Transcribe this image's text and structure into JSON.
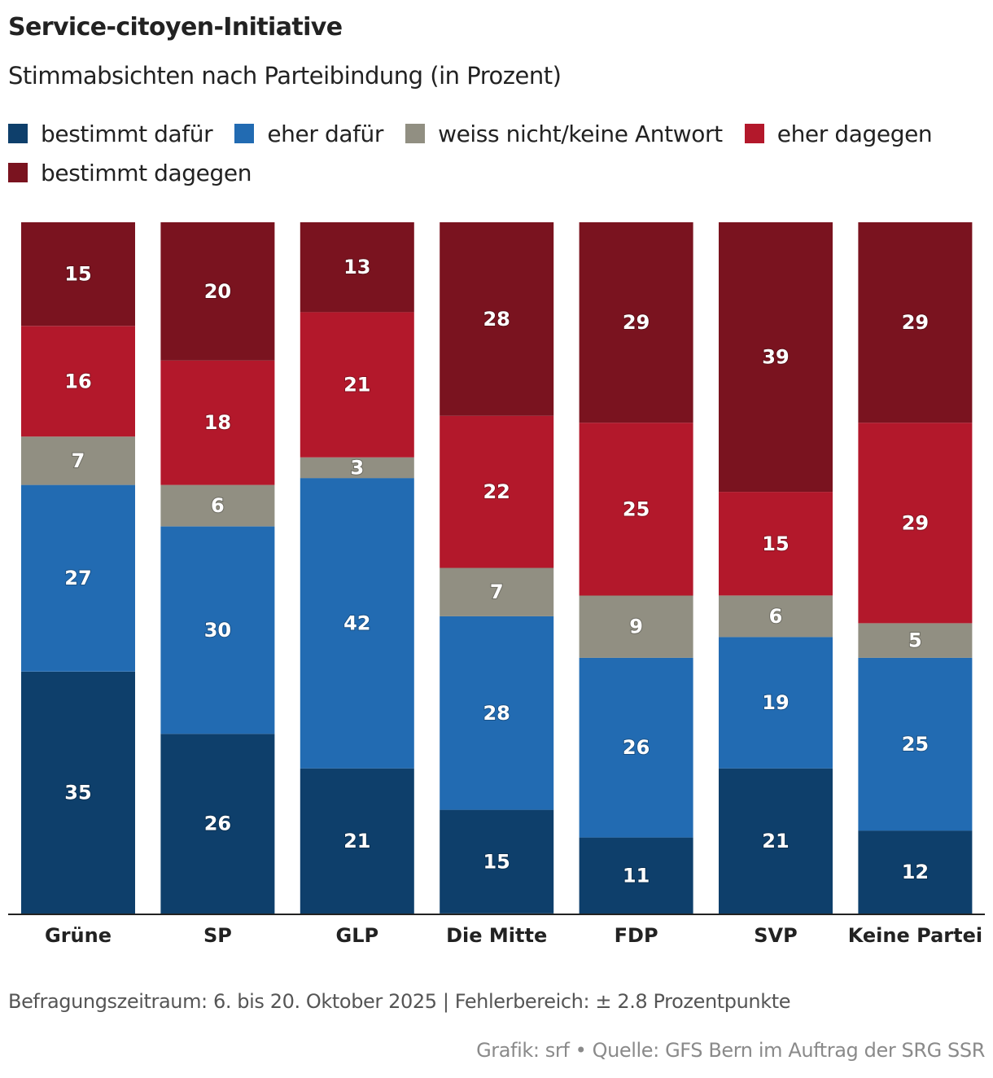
{
  "chart_data": {
    "type": "bar",
    "stacked": true,
    "orientation": "vertical",
    "title": "Service-citoyen-Initiative",
    "subtitle": "Stimmabsichten nach Parteibindung (in Prozent)",
    "xlabel": "",
    "ylabel": "",
    "ylim": [
      0,
      100
    ],
    "grid": false,
    "legend_position": "top-left",
    "categories": [
      "Grüne",
      "SP",
      "GLP",
      "Die Mitte",
      "FDP",
      "SVP",
      "Keine Partei"
    ],
    "series": [
      {
        "name": "bestimmt dafür",
        "color": "#0e3f6b",
        "values": [
          35,
          26,
          21,
          15,
          11,
          21,
          12
        ]
      },
      {
        "name": "eher dafür",
        "color": "#226bb2",
        "values": [
          27,
          30,
          42,
          28,
          26,
          19,
          25
        ]
      },
      {
        "name": "weiss nicht/keine Antwort",
        "color": "#918f82",
        "values": [
          7,
          6,
          3,
          7,
          9,
          6,
          5
        ]
      },
      {
        "name": "eher dagegen",
        "color": "#b3182b",
        "values": [
          16,
          18,
          21,
          22,
          25,
          15,
          29
        ]
      },
      {
        "name": "bestimmt dagegen",
        "color": "#7a131f",
        "values": [
          15,
          20,
          13,
          28,
          29,
          39,
          29
        ]
      }
    ],
    "note": "Befragungszeitraum: 6. bis 20. Oktober 2025 | Fehlerbereich: ± 2.8 Prozentpunkte",
    "credit": "Grafik: srf • Quelle: GFS Bern im Auftrag der SRG SSR"
  }
}
